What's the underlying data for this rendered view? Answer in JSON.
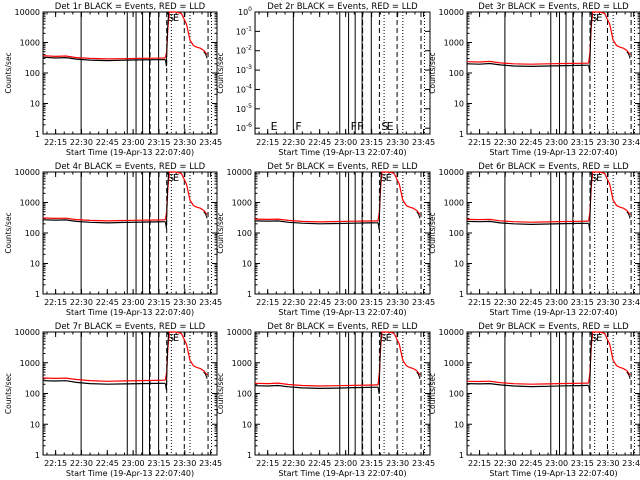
{
  "chart_data": {
    "type": "line",
    "x_ticks": [
      {
        "t": 0,
        "label": "22:15"
      },
      {
        "t": 15,
        "label": "22:30"
      },
      {
        "t": 30,
        "label": "22:45"
      },
      {
        "t": 45,
        "label": "23:00"
      },
      {
        "t": 60,
        "label": "23:15"
      },
      {
        "t": 75,
        "label": "23:30"
      },
      {
        "t": 90,
        "label": "23:45"
      }
    ],
    "x_range_minutes_after_2215": [
      -7.33,
      93.7
    ],
    "y_scale": "log",
    "y_range": [
      1,
      10000
    ],
    "y_ticks": [
      {
        "v": 1,
        "label": "1"
      },
      {
        "v": 10,
        "label": "10"
      },
      {
        "v": 100,
        "label": "100"
      },
      {
        "v": 1000,
        "label": "1000"
      },
      {
        "v": 10000,
        "label": "10000"
      }
    ],
    "y_ticks_empty_panel": [
      {
        "v": 1,
        "label": "10^0"
      },
      {
        "v": 0.1,
        "label": "10^-1"
      },
      {
        "v": 0.01,
        "label": "10^-2"
      },
      {
        "v": 0.001,
        "label": "10^-3"
      },
      {
        "v": 0.0001,
        "label": "10^-4"
      },
      {
        "v": 1e-05,
        "label": "10^-5"
      },
      {
        "v": 1e-06,
        "label": "10^-6"
      }
    ],
    "ylabel": "Counts/sec",
    "xlabel": "Start Time (19-Apr-13 22:07:40)",
    "solid_markers_minutes": [
      -7.3,
      14.8,
      41.6,
      46.7,
      50.5,
      54.5,
      59.8
    ],
    "dashed_markers_minutes": [
      54.8,
      64.5,
      74.7,
      88.5
    ],
    "dotted_markers_minutes": [
      67.2,
      78.0,
      90.5
    ],
    "event_flags": [
      {
        "t": 0.5,
        "label": "E"
      },
      {
        "t": 14.8,
        "label": "F"
      },
      {
        "t": 46.7,
        "label": "F"
      },
      {
        "t": 50.5,
        "label": "F"
      },
      {
        "t": 64.5,
        "label": "S"
      },
      {
        "t": 67.5,
        "label": "E"
      }
    ],
    "series_legend": [
      {
        "name": "Events",
        "color": "#000000"
      },
      {
        "name": "LLD",
        "color": "#ff0000"
      }
    ],
    "panels": [
      {
        "title": "Det 1r BLACK = Events, RED = LLD",
        "empty": false,
        "flags": [
          "S",
          "E"
        ],
        "events": [
          [
            -7.33,
            330
          ],
          [
            0,
            310
          ],
          [
            6,
            320
          ],
          [
            12,
            285
          ],
          [
            20,
            265
          ],
          [
            30,
            255
          ],
          [
            40,
            262
          ],
          [
            50,
            268
          ],
          [
            58,
            272
          ],
          [
            63.7,
            275
          ]
        ],
        "lld": [
          [
            -7.33,
            370
          ],
          [
            0,
            350
          ],
          [
            6,
            360
          ],
          [
            12,
            320
          ],
          [
            20,
            300
          ],
          [
            30,
            290
          ],
          [
            40,
            295
          ],
          [
            50,
            302
          ],
          [
            58,
            306
          ],
          [
            63.7,
            310
          ]
        ],
        "spike": [
          [
            64.5,
            500
          ],
          [
            65.2,
            3000
          ],
          [
            66.0,
            10000
          ],
          [
            70,
            10000
          ],
          [
            73,
            9000
          ],
          [
            76,
            4000
          ],
          [
            78,
            1200
          ],
          [
            80,
            800
          ],
          [
            82,
            700
          ],
          [
            84,
            650
          ],
          [
            86,
            550
          ],
          [
            88,
            400
          ]
        ]
      },
      {
        "title": "Det 2r BLACK = Events, RED = LLD",
        "empty": true,
        "flags": [
          "E",
          "F",
          "F",
          "F",
          "S",
          "E"
        ]
      },
      {
        "title": "Det 3r BLACK = Events, RED = LLD",
        "empty": false,
        "flags": [
          "S",
          "E"
        ],
        "events": [
          [
            -7.33,
            200
          ],
          [
            0,
            195
          ],
          [
            6,
            205
          ],
          [
            12,
            185
          ],
          [
            20,
            170
          ],
          [
            30,
            165
          ],
          [
            40,
            170
          ],
          [
            50,
            175
          ],
          [
            58,
            178
          ],
          [
            63.7,
            180
          ]
        ],
        "lld": [
          [
            -7.33,
            235
          ],
          [
            0,
            230
          ],
          [
            6,
            240
          ],
          [
            12,
            215
          ],
          [
            20,
            200
          ],
          [
            30,
            195
          ],
          [
            40,
            200
          ],
          [
            50,
            205
          ],
          [
            58,
            208
          ],
          [
            63.7,
            210
          ]
        ],
        "spike": [
          [
            64.5,
            500
          ],
          [
            65.2,
            3000
          ],
          [
            66.0,
            10000
          ],
          [
            70,
            10000
          ],
          [
            73,
            9000
          ],
          [
            76,
            4000
          ],
          [
            78,
            1200
          ],
          [
            80,
            800
          ],
          [
            82,
            700
          ],
          [
            84,
            650
          ],
          [
            86,
            550
          ],
          [
            88,
            400
          ]
        ]
      },
      {
        "title": "Det 4r BLACK = Events, RED = LLD",
        "empty": false,
        "flags": [
          "S",
          "E"
        ],
        "events": [
          [
            -7.33,
            270
          ],
          [
            0,
            265
          ],
          [
            6,
            268
          ],
          [
            12,
            240
          ],
          [
            20,
            225
          ],
          [
            30,
            215
          ],
          [
            40,
            222
          ],
          [
            50,
            228
          ],
          [
            58,
            232
          ],
          [
            63.7,
            235
          ]
        ],
        "lld": [
          [
            -7.33,
            310
          ],
          [
            0,
            300
          ],
          [
            6,
            305
          ],
          [
            12,
            275
          ],
          [
            20,
            258
          ],
          [
            30,
            250
          ],
          [
            40,
            256
          ],
          [
            50,
            262
          ],
          [
            58,
            266
          ],
          [
            63.7,
            270
          ]
        ],
        "spike": [
          [
            64.5,
            500
          ],
          [
            65.2,
            3000
          ],
          [
            66.0,
            10000
          ],
          [
            70,
            10000
          ],
          [
            73,
            9000
          ],
          [
            76,
            4000
          ],
          [
            78,
            1200
          ],
          [
            80,
            800
          ],
          [
            82,
            700
          ],
          [
            84,
            650
          ],
          [
            86,
            550
          ],
          [
            88,
            400
          ]
        ]
      },
      {
        "title": "Det 5r BLACK = Events, RED = LLD",
        "empty": false,
        "flags": [
          "S",
          "E"
        ],
        "events": [
          [
            -7.33,
            250
          ],
          [
            0,
            245
          ],
          [
            6,
            250
          ],
          [
            12,
            225
          ],
          [
            20,
            210
          ],
          [
            30,
            200
          ],
          [
            40,
            205
          ],
          [
            50,
            210
          ],
          [
            58,
            214
          ],
          [
            63.7,
            216
          ]
        ],
        "lld": [
          [
            -7.33,
            285
          ],
          [
            0,
            280
          ],
          [
            6,
            286
          ],
          [
            12,
            258
          ],
          [
            20,
            240
          ],
          [
            30,
            232
          ],
          [
            40,
            238
          ],
          [
            50,
            243
          ],
          [
            58,
            247
          ],
          [
            63.7,
            250
          ]
        ],
        "spike": [
          [
            64.5,
            500
          ],
          [
            65.2,
            3000
          ],
          [
            66.0,
            10000
          ],
          [
            70,
            10000
          ],
          [
            73,
            9000
          ],
          [
            76,
            4000
          ],
          [
            78,
            1200
          ],
          [
            80,
            800
          ],
          [
            82,
            700
          ],
          [
            84,
            650
          ],
          [
            86,
            550
          ],
          [
            88,
            400
          ]
        ]
      },
      {
        "title": "Det 6r BLACK = Events, RED = LLD",
        "empty": false,
        "flags": [
          "S",
          "E"
        ],
        "events": [
          [
            -7.33,
            240
          ],
          [
            0,
            235
          ],
          [
            6,
            240
          ],
          [
            12,
            215
          ],
          [
            20,
            200
          ],
          [
            30,
            192
          ],
          [
            40,
            197
          ],
          [
            50,
            203
          ],
          [
            58,
            206
          ],
          [
            63.7,
            208
          ]
        ],
        "lld": [
          [
            -7.33,
            280
          ],
          [
            0,
            275
          ],
          [
            6,
            280
          ],
          [
            12,
            252
          ],
          [
            20,
            235
          ],
          [
            30,
            226
          ],
          [
            40,
            232
          ],
          [
            50,
            238
          ],
          [
            58,
            242
          ],
          [
            63.7,
            245
          ]
        ],
        "spike": [
          [
            64.5,
            500
          ],
          [
            65.2,
            3000
          ],
          [
            66.0,
            10000
          ],
          [
            70,
            10000
          ],
          [
            73,
            9000
          ],
          [
            76,
            4000
          ],
          [
            78,
            1200
          ],
          [
            80,
            800
          ],
          [
            82,
            700
          ],
          [
            84,
            650
          ],
          [
            86,
            550
          ],
          [
            88,
            400
          ]
        ]
      },
      {
        "title": "Det 7r BLACK = Events, RED = LLD",
        "empty": false,
        "flags": [
          "S",
          "E"
        ],
        "events": [
          [
            -7.33,
            260
          ],
          [
            0,
            255
          ],
          [
            6,
            260
          ],
          [
            12,
            230
          ],
          [
            20,
            210
          ],
          [
            30,
            200
          ],
          [
            40,
            205
          ],
          [
            50,
            210
          ],
          [
            58,
            213
          ],
          [
            63.7,
            215
          ]
        ],
        "lld": [
          [
            -7.33,
            320
          ],
          [
            0,
            310
          ],
          [
            6,
            318
          ],
          [
            12,
            285
          ],
          [
            20,
            262
          ],
          [
            30,
            250
          ],
          [
            40,
            256
          ],
          [
            50,
            262
          ],
          [
            58,
            266
          ],
          [
            63.7,
            270
          ]
        ],
        "spike": [
          [
            64.5,
            500
          ],
          [
            65.2,
            3000
          ],
          [
            66.0,
            10000
          ],
          [
            70,
            10000
          ],
          [
            73,
            9000
          ],
          [
            76,
            4000
          ],
          [
            78,
            1200
          ],
          [
            80,
            800
          ],
          [
            82,
            700
          ],
          [
            84,
            650
          ],
          [
            86,
            550
          ],
          [
            88,
            400
          ]
        ]
      },
      {
        "title": "Det 8r BLACK = Events, RED = LLD",
        "empty": false,
        "flags": [
          "S",
          "E"
        ],
        "events": [
          [
            -7.33,
            180
          ],
          [
            0,
            176
          ],
          [
            6,
            182
          ],
          [
            12,
            165
          ],
          [
            20,
            152
          ],
          [
            30,
            146
          ],
          [
            40,
            150
          ],
          [
            50,
            155
          ],
          [
            58,
            158
          ],
          [
            63.7,
            160
          ]
        ],
        "lld": [
          [
            -7.33,
            215
          ],
          [
            0,
            210
          ],
          [
            6,
            218
          ],
          [
            12,
            196
          ],
          [
            20,
            182
          ],
          [
            30,
            175
          ],
          [
            40,
            180
          ],
          [
            50,
            185
          ],
          [
            58,
            188
          ],
          [
            63.7,
            190
          ]
        ],
        "spike": [
          [
            64.5,
            500
          ],
          [
            65.2,
            3000
          ],
          [
            66.0,
            10000
          ],
          [
            70,
            10000
          ],
          [
            73,
            9000
          ],
          [
            76,
            4000
          ],
          [
            78,
            1200
          ],
          [
            80,
            800
          ],
          [
            82,
            700
          ],
          [
            84,
            650
          ],
          [
            86,
            550
          ],
          [
            88,
            400
          ]
        ]
      },
      {
        "title": "Det 9r BLACK = Events, RED = LLD",
        "empty": false,
        "flags": [
          "S",
          "E"
        ],
        "events": [
          [
            -7.33,
            210
          ],
          [
            0,
            205
          ],
          [
            6,
            210
          ],
          [
            12,
            190
          ],
          [
            20,
            175
          ],
          [
            30,
            168
          ],
          [
            40,
            172
          ],
          [
            50,
            178
          ],
          [
            58,
            181
          ],
          [
            63.7,
            183
          ]
        ],
        "lld": [
          [
            -7.33,
            250
          ],
          [
            0,
            245
          ],
          [
            6,
            252
          ],
          [
            12,
            226
          ],
          [
            20,
            208
          ],
          [
            30,
            200
          ],
          [
            40,
            205
          ],
          [
            50,
            211
          ],
          [
            58,
            215
          ],
          [
            63.7,
            218
          ]
        ],
        "spike": [
          [
            64.5,
            500
          ],
          [
            65.2,
            3000
          ],
          [
            66.0,
            10000
          ],
          [
            70,
            10000
          ],
          [
            73,
            9000
          ],
          [
            76,
            4000
          ],
          [
            78,
            1200
          ],
          [
            80,
            800
          ],
          [
            82,
            700
          ],
          [
            84,
            650
          ],
          [
            86,
            550
          ],
          [
            88,
            400
          ]
        ]
      }
    ]
  }
}
